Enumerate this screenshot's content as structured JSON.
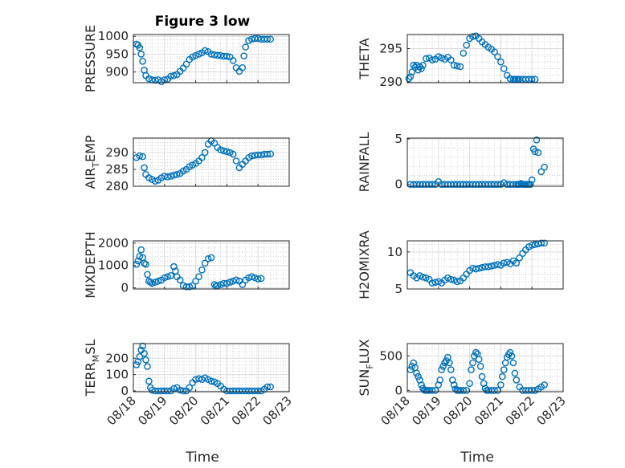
{
  "figure": {
    "title": "Figure 3 low",
    "xlabel": "Time",
    "marker_color": "#0072BD"
  },
  "chart_data": [
    {
      "type": "scatter",
      "ylabel": "PRESSURE",
      "ylim": [
        870,
        1005
      ],
      "yticks": [
        900,
        950,
        1000
      ],
      "xlim": [
        0,
        5
      ],
      "xticks": [
        "08/18",
        "08/19",
        "08/20",
        "08/21",
        "08/22",
        "08/23"
      ],
      "show_xticks": false,
      "x": [
        0.1,
        0.15,
        0.2,
        0.25,
        0.3,
        0.35,
        0.4,
        0.5,
        0.6,
        0.7,
        0.8,
        0.9,
        1.0,
        1.1,
        1.2,
        1.3,
        1.4,
        1.5,
        1.6,
        1.7,
        1.8,
        1.9,
        2.0,
        2.1,
        2.2,
        2.3,
        2.4,
        2.5,
        2.6,
        2.7,
        2.8,
        2.9,
        3.0,
        3.1,
        3.2,
        3.3,
        3.4,
        3.5,
        3.55,
        3.6,
        3.7,
        3.8,
        3.9,
        4.0,
        4.1,
        4.2,
        4.3,
        4.4
      ],
      "y": [
        978,
        975,
        968,
        950,
        930,
        905,
        890,
        881,
        878,
        877,
        878,
        873,
        878,
        880,
        888,
        890,
        893,
        902,
        911,
        922,
        935,
        942,
        946,
        950,
        954,
        960,
        957,
        950,
        948,
        947,
        946,
        944,
        944,
        942,
        932,
        912,
        902,
        912,
        945,
        970,
        988,
        992,
        994,
        994,
        992,
        992,
        992,
        992
      ]
    },
    {
      "type": "scatter",
      "ylabel": "THETA",
      "ylim": [
        289.9,
        297.1
      ],
      "yticks": [
        290,
        295
      ],
      "xlim": [
        0,
        5
      ],
      "xticks": [
        "08/18",
        "08/19",
        "08/20",
        "08/21",
        "08/22",
        "08/23"
      ],
      "show_xticks": false,
      "x": [
        0.05,
        0.1,
        0.15,
        0.2,
        0.25,
        0.3,
        0.35,
        0.4,
        0.45,
        0.5,
        0.6,
        0.7,
        0.8,
        0.9,
        1.0,
        1.1,
        1.2,
        1.3,
        1.4,
        1.5,
        1.6,
        1.7,
        1.8,
        1.9,
        2.0,
        2.1,
        2.2,
        2.3,
        2.4,
        2.5,
        2.6,
        2.7,
        2.8,
        2.9,
        3.0,
        3.1,
        3.2,
        3.3,
        3.4,
        3.45,
        3.5,
        3.55,
        3.6,
        3.7,
        3.8,
        3.9,
        4.0,
        4.1
      ],
      "y": [
        290.5,
        290.8,
        291.5,
        292.5,
        292.2,
        292.5,
        291.8,
        292.3,
        292.0,
        292.5,
        293.5,
        293.6,
        293.3,
        293.4,
        293.8,
        293.6,
        293.4,
        293.7,
        293.3,
        292.5,
        292.4,
        292.3,
        294.3,
        295.5,
        296.5,
        296.8,
        296.9,
        296.5,
        296.0,
        295.6,
        295.2,
        294.9,
        294.5,
        293.8,
        293.0,
        292.0,
        291.0,
        290.5,
        290.4,
        290.4,
        290.4,
        290.4,
        290.4,
        290.4,
        290.4,
        290.4,
        290.4,
        290.4
      ]
    },
    {
      "type": "scatter",
      "ylabel": "AIR_TEMP",
      "ylim": [
        280,
        294.3
      ],
      "yticks": [
        280,
        285,
        290
      ],
      "xlim": [
        0,
        5
      ],
      "xticks": [
        "08/18",
        "08/19",
        "08/20",
        "08/21",
        "08/22",
        "08/23"
      ],
      "show_xticks": false,
      "x": [
        0.1,
        0.2,
        0.3,
        0.35,
        0.4,
        0.5,
        0.6,
        0.7,
        0.8,
        0.9,
        1.0,
        1.1,
        1.2,
        1.3,
        1.4,
        1.5,
        1.6,
        1.7,
        1.8,
        1.9,
        2.0,
        2.1,
        2.2,
        2.3,
        2.4,
        2.5,
        2.6,
        2.7,
        2.8,
        2.9,
        3.0,
        3.1,
        3.2,
        3.3,
        3.4,
        3.5,
        3.6,
        3.7,
        3.8,
        3.9,
        4.0,
        4.1,
        4.2,
        4.3,
        4.4
      ],
      "y": [
        288.5,
        289.0,
        288.8,
        285.5,
        283.5,
        282.5,
        282.0,
        281.5,
        281.8,
        282.5,
        283.0,
        282.8,
        283.0,
        283.3,
        283.5,
        283.8,
        284.5,
        285.0,
        285.8,
        286.3,
        286.8,
        287.5,
        288.5,
        290.0,
        292.5,
        293.5,
        292.8,
        291.5,
        290.8,
        290.5,
        290.3,
        290.0,
        289.5,
        287.5,
        285.5,
        286.5,
        287.5,
        288.5,
        289.0,
        289.2,
        289.3,
        289.3,
        289.5,
        289.5,
        289.6
      ]
    },
    {
      "type": "scatter",
      "ylabel": "RAINFALL",
      "ylim": [
        -0.2,
        5.1
      ],
      "yticks": [
        0,
        5
      ],
      "xlim": [
        0,
        5
      ],
      "xticks": [
        "08/18",
        "08/19",
        "08/20",
        "08/21",
        "08/22",
        "08/23"
      ],
      "show_xticks": false,
      "x": [
        0.1,
        0.2,
        0.3,
        0.4,
        0.5,
        0.6,
        0.7,
        0.8,
        0.9,
        1.0,
        1.1,
        1.2,
        1.3,
        1.4,
        1.5,
        1.6,
        1.7,
        1.8,
        1.9,
        2.0,
        2.1,
        2.2,
        2.3,
        2.4,
        2.5,
        2.6,
        2.7,
        2.8,
        2.9,
        3.0,
        3.1,
        3.2,
        3.3,
        3.4,
        3.5,
        3.55,
        3.6,
        3.65,
        3.7,
        3.75,
        3.8,
        3.85,
        3.9,
        3.95,
        4.0,
        4.05,
        4.1,
        4.15,
        4.2,
        4.3,
        4.4
      ],
      "y": [
        0,
        0,
        0,
        0,
        0,
        0,
        0,
        0,
        0,
        0.3,
        0,
        0,
        0,
        0,
        0,
        0,
        0,
        0,
        0,
        0,
        0,
        0,
        0,
        0,
        0,
        0,
        0,
        0,
        0,
        0,
        0.2,
        0,
        0,
        0,
        0,
        0,
        0,
        0.1,
        0,
        0,
        0,
        0,
        0,
        0,
        0.5,
        3.9,
        3.6,
        4.9,
        3.5,
        1.4,
        1.9
      ]
    },
    {
      "type": "scatter",
      "ylabel": "MIXDEPTH",
      "ylim": [
        -50,
        2100
      ],
      "yticks": [
        0,
        1000,
        2000
      ],
      "xlim": [
        0,
        5
      ],
      "xticks": [
        "08/18",
        "08/19",
        "08/20",
        "08/21",
        "08/22",
        "08/23"
      ],
      "show_xticks": false,
      "x": [
        0.1,
        0.15,
        0.2,
        0.25,
        0.3,
        0.35,
        0.4,
        0.45,
        0.5,
        0.55,
        0.6,
        0.7,
        0.8,
        0.9,
        1.0,
        1.1,
        1.2,
        1.3,
        1.35,
        1.4,
        1.5,
        1.6,
        1.7,
        1.8,
        1.9,
        2.0,
        2.1,
        2.2,
        2.3,
        2.4,
        2.5,
        2.6,
        2.65,
        2.7,
        2.8,
        2.9,
        3.0,
        3.1,
        3.2,
        3.3,
        3.4,
        3.5,
        3.6,
        3.7,
        3.8,
        3.9,
        4.0,
        4.1
      ],
      "y": [
        1050,
        1200,
        1400,
        1700,
        1350,
        1100,
        1050,
        600,
        300,
        250,
        200,
        250,
        300,
        350,
        450,
        500,
        550,
        950,
        750,
        500,
        350,
        100,
        50,
        50,
        100,
        300,
        500,
        800,
        1100,
        1300,
        1350,
        150,
        80,
        100,
        150,
        200,
        200,
        250,
        300,
        350,
        300,
        150,
        350,
        450,
        500,
        450,
        400,
        420
      ]
    },
    {
      "type": "scatter",
      "ylabel": "H2OMIXRA",
      "ylim": [
        5,
        11.5
      ],
      "yticks": [
        5,
        10
      ],
      "xlim": [
        0,
        5
      ],
      "xticks": [
        "08/18",
        "08/19",
        "08/20",
        "08/21",
        "08/22",
        "08/23"
      ],
      "show_xticks": false,
      "x": [
        0.1,
        0.2,
        0.3,
        0.4,
        0.5,
        0.6,
        0.7,
        0.8,
        0.9,
        1.0,
        1.1,
        1.2,
        1.3,
        1.4,
        1.5,
        1.6,
        1.7,
        1.8,
        1.9,
        2.0,
        2.1,
        2.2,
        2.3,
        2.4,
        2.5,
        2.6,
        2.7,
        2.8,
        2.9,
        3.0,
        3.1,
        3.2,
        3.3,
        3.4,
        3.5,
        3.6,
        3.7,
        3.8,
        3.9,
        4.0,
        4.1,
        4.2,
        4.3,
        4.4
      ],
      "y": [
        7.2,
        6.8,
        6.5,
        6.8,
        6.6,
        6.5,
        6.3,
        5.8,
        5.9,
        6.0,
        5.8,
        6.2,
        6.5,
        6.3,
        6.2,
        6.0,
        6.1,
        6.5,
        7.0,
        7.5,
        7.8,
        7.7,
        7.8,
        7.9,
        8.0,
        8.0,
        8.1,
        8.2,
        8.3,
        8.2,
        8.5,
        8.6,
        8.4,
        8.8,
        8.5,
        9.2,
        9.8,
        10.3,
        10.7,
        10.9,
        11.0,
        11.1,
        11.2,
        11.2
      ]
    },
    {
      "type": "scatter",
      "ylabel": "TERR_MSL",
      "ylim": [
        -5,
        290
      ],
      "yticks": [
        0,
        100,
        200
      ],
      "xlim": [
        0,
        5
      ],
      "xticks": [
        "08/18",
        "08/19",
        "08/20",
        "08/21",
        "08/22",
        "08/23"
      ],
      "show_xticks": true,
      "x": [
        0.1,
        0.15,
        0.2,
        0.25,
        0.3,
        0.35,
        0.4,
        0.45,
        0.5,
        0.55,
        0.6,
        0.7,
        0.8,
        0.9,
        1.0,
        1.1,
        1.2,
        1.3,
        1.4,
        1.5,
        1.6,
        1.7,
        1.8,
        1.9,
        2.0,
        2.1,
        2.2,
        2.3,
        2.4,
        2.5,
        2.6,
        2.7,
        2.8,
        2.9,
        3.0,
        3.1,
        3.2,
        3.3,
        3.4,
        3.5,
        3.6,
        3.7,
        3.8,
        3.9,
        4.0,
        4.1,
        4.2,
        4.3,
        4.4
      ],
      "y": [
        160,
        180,
        210,
        250,
        275,
        230,
        190,
        150,
        60,
        20,
        5,
        0,
        0,
        0,
        0,
        0,
        0,
        15,
        20,
        5,
        0,
        0,
        20,
        50,
        70,
        75,
        70,
        80,
        70,
        60,
        55,
        45,
        30,
        10,
        0,
        0,
        0,
        0,
        0,
        0,
        0,
        0,
        0,
        0,
        0,
        0,
        10,
        25,
        25
      ]
    },
    {
      "type": "scatter",
      "ylabel": "SUN_FLUX",
      "ylim": [
        -20,
        680
      ],
      "yticks": [
        0,
        500
      ],
      "xlim": [
        0,
        5
      ],
      "xticks": [
        "08/18",
        "08/19",
        "08/20",
        "08/21",
        "08/22",
        "08/23"
      ],
      "show_xticks": true,
      "x": [
        0.1,
        0.15,
        0.2,
        0.25,
        0.3,
        0.35,
        0.4,
        0.45,
        0.5,
        0.55,
        0.6,
        0.65,
        0.7,
        0.8,
        0.9,
        1.0,
        1.05,
        1.1,
        1.15,
        1.2,
        1.25,
        1.3,
        1.35,
        1.4,
        1.45,
        1.5,
        1.55,
        1.6,
        1.65,
        1.7,
        1.8,
        1.9,
        2.0,
        2.05,
        2.1,
        2.15,
        2.2,
        2.25,
        2.3,
        2.35,
        2.4,
        2.45,
        2.5,
        2.55,
        2.6,
        2.7,
        2.8,
        2.9,
        3.0,
        3.05,
        3.1,
        3.15,
        3.2,
        3.25,
        3.3,
        3.35,
        3.4,
        3.45,
        3.5,
        3.6,
        3.7,
        3.8,
        3.9,
        4.0,
        4.1,
        4.2,
        4.3,
        4.4
      ],
      "y": [
        300,
        350,
        400,
        330,
        250,
        200,
        150,
        80,
        30,
        5,
        0,
        0,
        0,
        0,
        0,
        80,
        150,
        300,
        350,
        400,
        430,
        480,
        400,
        300,
        150,
        80,
        20,
        0,
        0,
        0,
        0,
        0,
        100,
        300,
        400,
        500,
        550,
        530,
        450,
        350,
        200,
        100,
        30,
        0,
        0,
        0,
        0,
        0,
        80,
        200,
        300,
        400,
        480,
        520,
        550,
        500,
        400,
        250,
        150,
        50,
        0,
        0,
        0,
        0,
        0,
        20,
        50,
        80
      ]
    }
  ]
}
